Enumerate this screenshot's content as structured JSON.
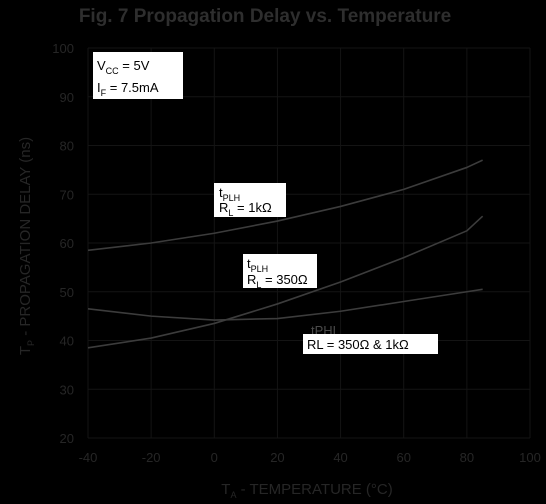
{
  "chart_data": {
    "type": "line",
    "title": "Fig. 7  Propagation Delay vs. Temperature",
    "xlabel": {
      "main": "T",
      "sub": "A",
      "rest": " - TEMPERATURE (°C)"
    },
    "ylabel": {
      "main": "T",
      "sub": "P",
      "rest": " - PROPAGATION DELAY (ns)"
    },
    "xlim": [
      -40,
      100
    ],
    "ylim": [
      20,
      100
    ],
    "xticks": [
      "-40",
      "-20",
      "0",
      "20",
      "40",
      "60",
      "80",
      "100"
    ],
    "yticks": [
      "20",
      "30",
      "40",
      "50",
      "60",
      "70",
      "80",
      "90",
      "100"
    ],
    "grid": true,
    "series": [
      {
        "x": [
          -40,
          -20,
          0,
          20,
          40,
          60,
          80,
          85
        ],
        "y": [
          58.5,
          60.0,
          62.0,
          64.5,
          67.5,
          71.0,
          75.5,
          77.0
        ]
      },
      {
        "x": [
          -40,
          -20,
          0,
          20,
          40,
          60,
          80,
          85
        ],
        "y": [
          38.5,
          40.5,
          43.5,
          47.5,
          52.0,
          57.0,
          62.5,
          65.5
        ]
      },
      {
        "x": [
          -40,
          -20,
          0,
          20,
          40,
          60,
          80,
          85
        ],
        "y": [
          46.5,
          45.0,
          44.2,
          44.5,
          46.0,
          48.0,
          50.0,
          50.5
        ]
      }
    ],
    "annotations": [
      {
        "id": "conditions",
        "lines": [
          {
            "main": "V",
            "sub": "CC",
            "rest": " = 5V"
          },
          {
            "main": "I",
            "sub": "F",
            "rest": " = 7.5mA"
          }
        ]
      },
      {
        "id": "tplh-1k",
        "lines": [
          {
            "main": "t",
            "sub": "PLH",
            "rest": ""
          },
          {
            "main": "R",
            "sub": "L",
            "rest": " = 1kΩ"
          }
        ]
      },
      {
        "id": "tplh-350",
        "lines": [
          {
            "main": "t",
            "sub": "PLH",
            "rest": ""
          },
          {
            "main": "R",
            "sub": "L",
            "rest": " = 350Ω"
          }
        ]
      },
      {
        "id": "tphl",
        "lines": [
          {
            "main": "",
            "sub": "",
            "rest": "RL = 350Ω & 1kΩ"
          }
        ]
      }
    ],
    "ghost_label": "tPHL"
  }
}
